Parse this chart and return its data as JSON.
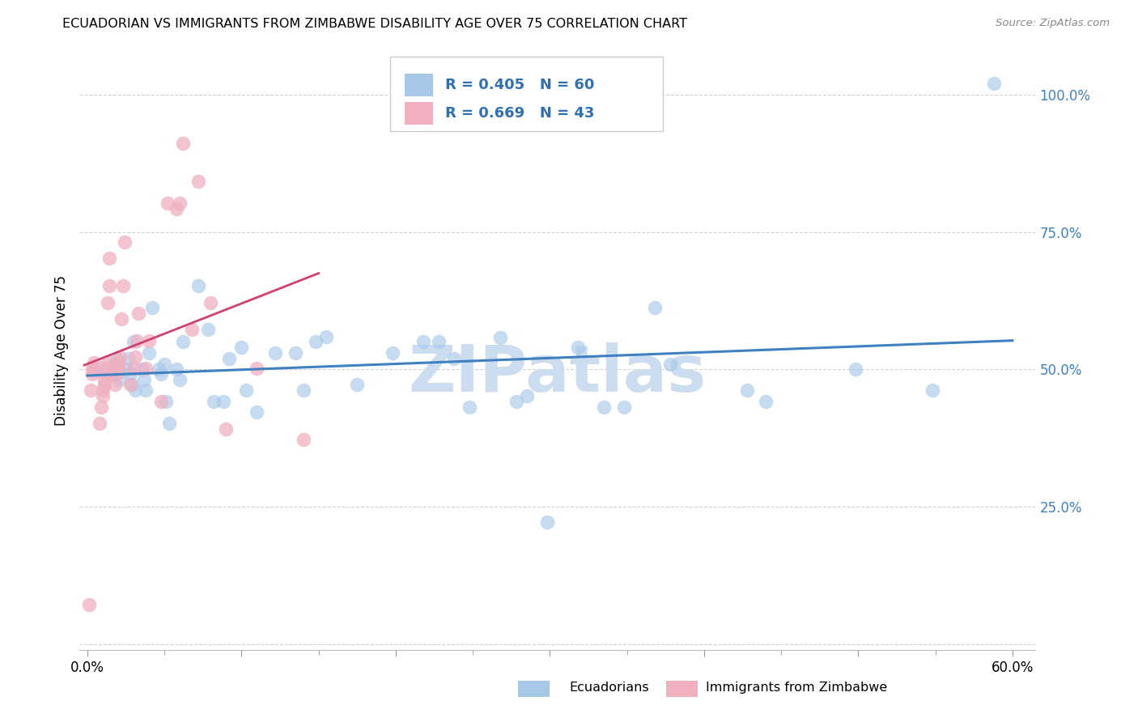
{
  "title": "ECUADORIAN VS IMMIGRANTS FROM ZIMBABWE DISABILITY AGE OVER 75 CORRELATION CHART",
  "source": "Source: ZipAtlas.com",
  "ylabel": "Disability Age Over 75",
  "legend_label1": "Ecuadorians",
  "legend_label2": "Immigrants from Zimbabwe",
  "r1": 0.405,
  "n1": 60,
  "r2": 0.669,
  "n2": 43,
  "xlim": [
    -0.005,
    0.615
  ],
  "ylim": [
    -0.01,
    1.08
  ],
  "xticks": [
    0.0,
    0.1,
    0.2,
    0.3,
    0.4,
    0.5,
    0.6
  ],
  "xtick_labels": [
    "0.0%",
    "",
    "",
    "",
    "",
    "",
    "60.0%"
  ],
  "yticks": [
    0.0,
    0.25,
    0.5,
    0.75,
    1.0
  ],
  "ytick_labels": [
    "",
    "25.0%",
    "50.0%",
    "75.0%",
    "100.0%"
  ],
  "color_blue": "#a8c8e8",
  "color_pink": "#f0b0c0",
  "line_blue": "#4080c0",
  "line_pink": "#d04070",
  "blue_scatter_x": [
    0.004,
    0.006,
    0.013,
    0.015,
    0.018,
    0.019,
    0.02,
    0.021,
    0.025,
    0.027,
    0.028,
    0.029,
    0.03,
    0.031,
    0.035,
    0.037,
    0.038,
    0.04,
    0.042,
    0.046,
    0.048,
    0.05,
    0.051,
    0.053,
    0.058,
    0.06,
    0.062,
    0.072,
    0.078,
    0.082,
    0.088,
    0.092,
    0.1,
    0.103,
    0.11,
    0.122,
    0.135,
    0.14,
    0.148,
    0.155,
    0.175,
    0.198,
    0.218,
    0.228,
    0.238,
    0.248,
    0.268,
    0.278,
    0.285,
    0.298,
    0.318,
    0.335,
    0.348,
    0.368,
    0.378,
    0.428,
    0.44,
    0.498,
    0.548,
    0.588
  ],
  "blue_scatter_y": [
    0.498,
    0.502,
    0.502,
    0.49,
    0.51,
    0.52,
    0.5,
    0.482,
    0.5,
    0.52,
    0.492,
    0.472,
    0.55,
    0.462,
    0.5,
    0.482,
    0.462,
    0.53,
    0.612,
    0.5,
    0.492,
    0.51,
    0.442,
    0.402,
    0.5,
    0.482,
    0.55,
    0.652,
    0.572,
    0.442,
    0.442,
    0.52,
    0.54,
    0.462,
    0.422,
    0.53,
    0.53,
    0.462,
    0.55,
    0.56,
    0.472,
    0.53,
    0.55,
    0.55,
    0.52,
    0.432,
    0.558,
    0.442,
    0.452,
    0.222,
    0.54,
    0.432,
    0.432,
    0.612,
    0.51,
    0.462,
    0.442,
    0.5,
    0.462,
    1.02
  ],
  "pink_scatter_x": [
    0.001,
    0.002,
    0.003,
    0.003,
    0.004,
    0.008,
    0.009,
    0.01,
    0.01,
    0.011,
    0.011,
    0.012,
    0.012,
    0.013,
    0.013,
    0.014,
    0.014,
    0.018,
    0.019,
    0.02,
    0.02,
    0.021,
    0.022,
    0.023,
    0.024,
    0.028,
    0.03,
    0.031,
    0.032,
    0.033,
    0.038,
    0.04,
    0.048,
    0.052,
    0.058,
    0.06,
    0.062,
    0.068,
    0.072,
    0.08,
    0.09,
    0.11,
    0.14
  ],
  "pink_scatter_y": [
    0.072,
    0.462,
    0.492,
    0.502,
    0.512,
    0.402,
    0.432,
    0.452,
    0.462,
    0.472,
    0.482,
    0.492,
    0.502,
    0.512,
    0.622,
    0.652,
    0.702,
    0.472,
    0.492,
    0.502,
    0.512,
    0.522,
    0.592,
    0.652,
    0.732,
    0.472,
    0.502,
    0.522,
    0.552,
    0.602,
    0.502,
    0.552,
    0.442,
    0.802,
    0.792,
    0.802,
    0.912,
    0.572,
    0.842,
    0.622,
    0.392,
    0.502,
    0.372
  ],
  "watermark": "ZIPatlas",
  "watermark_color": "#ccddef"
}
